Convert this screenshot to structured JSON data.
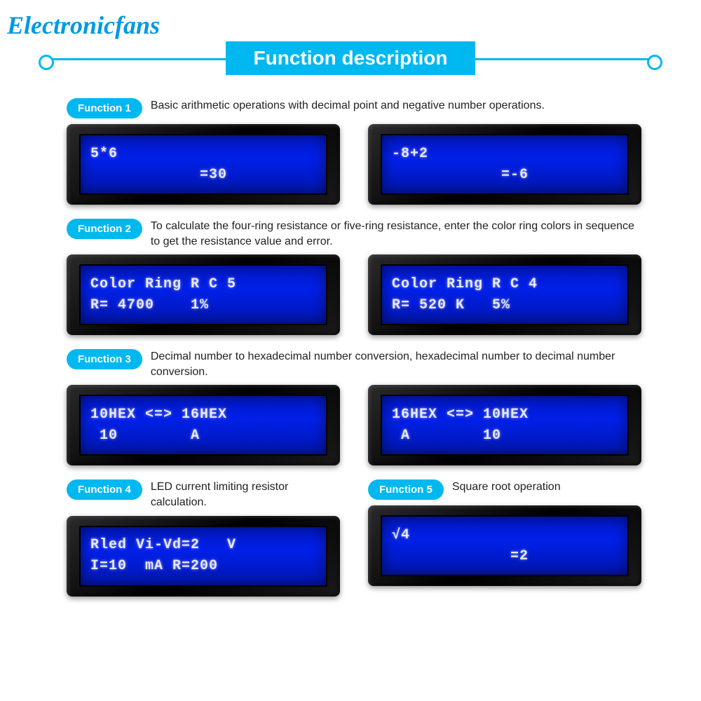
{
  "brand": "Electronicfans",
  "title": "Function description",
  "colors": {
    "accent": "#00b8f0",
    "lcd_bg": "#0018d8",
    "lcd_text": "#e8e8ff",
    "bezel": "#1a1a1a"
  },
  "functions": {
    "f1": {
      "badge": "Function 1",
      "desc": "Basic arithmetic operations with decimal point and negative number operations.",
      "lcd_left_line1": "5*6",
      "lcd_left_line2": "            =30",
      "lcd_right_line1": "-8+2",
      "lcd_right_line2": "            =-6"
    },
    "f2": {
      "badge": "Function 2",
      "desc": "To calculate the four-ring resistance or five-ring resistance, enter the color ring colors in sequence to get the resistance value and error.",
      "lcd_left_line1": "Color Ring R C 5",
      "lcd_left_line2": "R= 4700    1%",
      "lcd_right_line1": "Color Ring R C 4",
      "lcd_right_line2": "R= 520 K   5%"
    },
    "f3": {
      "badge": "Function 3",
      "desc": "Decimal number to hexadecimal number conversion, hexadecimal number to decimal number conversion.",
      "lcd_left_line1": "10HEX <=> 16HEX",
      "lcd_left_line2": " 10        A",
      "lcd_right_line1": "16HEX <=> 10HEX",
      "lcd_right_line2": " A        10"
    },
    "f4": {
      "badge": "Function 4",
      "desc": "LED current limiting resistor calculation.",
      "lcd_line1": "Rled Vi-Vd=2   V",
      "lcd_line2": "I=10  mA R=200"
    },
    "f5": {
      "badge": "Function 5",
      "desc": "Square root operation",
      "lcd_line1": "√4",
      "lcd_line2": "             =2"
    }
  }
}
